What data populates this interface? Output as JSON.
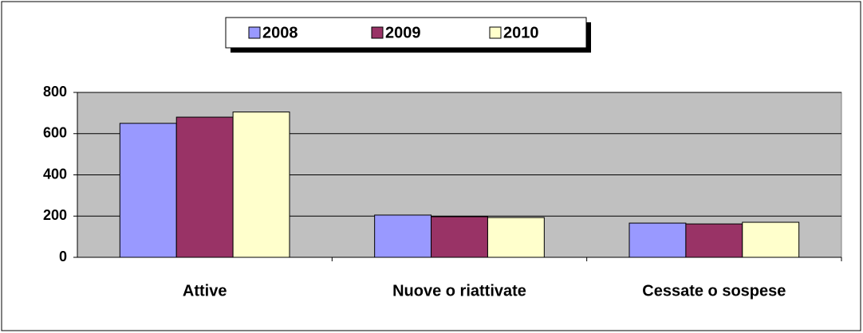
{
  "chart_data": {
    "type": "bar",
    "categories": [
      "Attive",
      "Nuove o riattivate",
      "Cessate o sospese"
    ],
    "series": [
      {
        "name": "2008",
        "color": "#9999ff",
        "values": [
          650,
          205,
          166
        ]
      },
      {
        "name": "2009",
        "color": "#993366",
        "values": [
          680,
          197,
          162
        ]
      },
      {
        "name": "2010",
        "color": "#ffffcc",
        "values": [
          705,
          193,
          170
        ]
      }
    ],
    "ylim": [
      0,
      800
    ],
    "yticks": [
      0,
      200,
      400,
      600,
      800
    ],
    "grid": true,
    "legend": "top"
  }
}
